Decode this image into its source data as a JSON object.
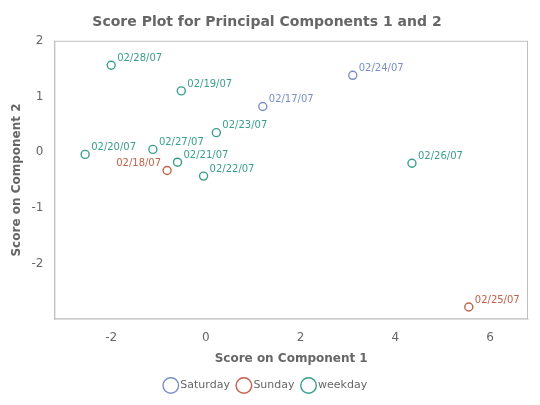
{
  "chart_data": {
    "type": "scatter",
    "title": "Score Plot for Principal Components 1 and 2",
    "xlabel": "Score on Component 1",
    "ylabel": "Score on Component 2",
    "xlim": [
      -3.2,
      6.8
    ],
    "ylim": [
      -3.0,
      2.0
    ],
    "xticks": [
      -2,
      0,
      2,
      4,
      6
    ],
    "yticks": [
      -2,
      -1,
      0,
      1,
      2
    ],
    "marker": "circle",
    "grid": false,
    "legend": "bottom",
    "series": [
      {
        "name": "Saturday",
        "color": "#7B8EC8",
        "x": [
          1.2,
          3.1
        ],
        "values": [
          0.82,
          1.38
        ],
        "labels": [
          "02/17/07",
          "02/24/07"
        ]
      },
      {
        "name": "Sunday",
        "color": "#C0624A",
        "x": [
          -0.82,
          5.55
        ],
        "values": [
          -0.33,
          -2.78
        ],
        "labels": [
          "02/18/07",
          "02/25/07"
        ]
      },
      {
        "name": "weekday",
        "color": "#3A9E8C",
        "x": [
          -0.52,
          -2.55,
          -0.6,
          -0.05,
          0.22,
          4.35,
          -1.12,
          -2.0
        ],
        "values": [
          1.1,
          -0.04,
          -0.18,
          -0.43,
          0.35,
          -0.2,
          0.05,
          1.56
        ],
        "labels": [
          "02/19/07",
          "02/20/07",
          "02/21/07",
          "02/22/07",
          "02/23/07",
          "02/26/07",
          "02/27/07",
          "02/28/07"
        ]
      }
    ]
  }
}
